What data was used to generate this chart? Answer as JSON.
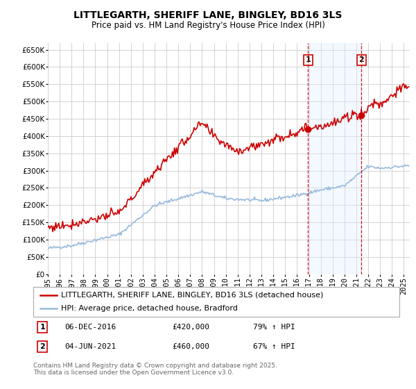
{
  "title": "LITTLEGARTH, SHERIFF LANE, BINGLEY, BD16 3LS",
  "subtitle": "Price paid vs. HM Land Registry's House Price Index (HPI)",
  "footnote": "Contains HM Land Registry data © Crown copyright and database right 2025.\nThis data is licensed under the Open Government Licence v3.0.",
  "legend_label_red": "LITTLEGARTH, SHERIFF LANE, BINGLEY, BD16 3LS (detached house)",
  "legend_label_blue": "HPI: Average price, detached house, Bradford",
  "marker1_date": "06-DEC-2016",
  "marker1_price": "£420,000",
  "marker1_hpi": "79% ↑ HPI",
  "marker2_date": "04-JUN-2021",
  "marker2_price": "£460,000",
  "marker2_hpi": "67% ↑ HPI",
  "marker1_x": 2016.92,
  "marker1_y": 420000,
  "marker2_x": 2021.42,
  "marker2_y": 460000,
  "vline1_x": 2016.92,
  "vline2_x": 2021.42,
  "ylim": [
    0,
    670000
  ],
  "xlim_start": 1995,
  "xlim_end": 2025.5,
  "background_color": "#ffffff",
  "plot_bg_color": "#ffffff",
  "red_color": "#cc0000",
  "blue_color": "#99bbdd",
  "vline_color": "#cc0000",
  "grid_color": "#cccccc",
  "span_color": "#ddeeff",
  "title_fontsize": 10,
  "subtitle_fontsize": 8.5,
  "axis_fontsize": 7.5,
  "legend_fontsize": 8,
  "footnote_fontsize": 6.5
}
